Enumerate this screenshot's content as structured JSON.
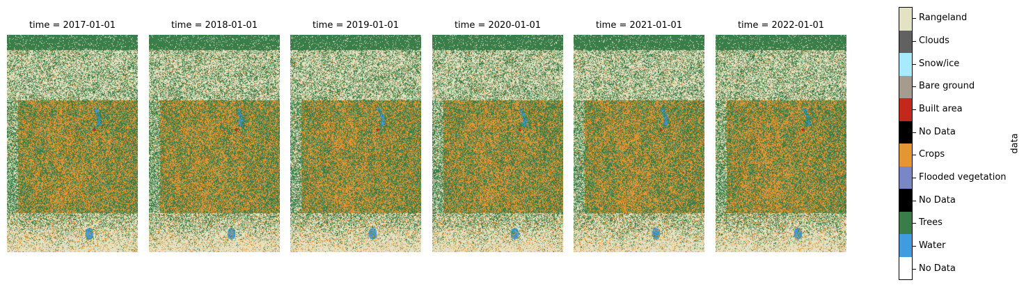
{
  "chart_data": {
    "type": "heatmap",
    "panels": [
      {
        "title": "time = 2017-01-01"
      },
      {
        "title": "time = 2018-01-01"
      },
      {
        "title": "time = 2019-01-01"
      },
      {
        "title": "time = 2020-01-01"
      },
      {
        "title": "time = 2021-01-01"
      },
      {
        "title": "time = 2022-01-01"
      }
    ],
    "colorbar": {
      "label": "data",
      "classes": [
        {
          "label": "No Data",
          "color": "#ffffff"
        },
        {
          "label": "Water",
          "color": "#419bdf"
        },
        {
          "label": "Trees",
          "color": "#397d49"
        },
        {
          "label": "No Data",
          "color": "#000000"
        },
        {
          "label": "Flooded vegetation",
          "color": "#7a87c6"
        },
        {
          "label": "Crops",
          "color": "#e49635"
        },
        {
          "label": "No Data",
          "color": "#000000"
        },
        {
          "label": "Built area",
          "color": "#c4281b"
        },
        {
          "label": "Bare ground",
          "color": "#a59b8f"
        },
        {
          "label": "Snow/ice",
          "color": "#a8ebff"
        },
        {
          "label": "Clouds",
          "color": "#616161"
        },
        {
          "label": "Rangeland",
          "color": "#e3e2c3"
        }
      ]
    }
  }
}
